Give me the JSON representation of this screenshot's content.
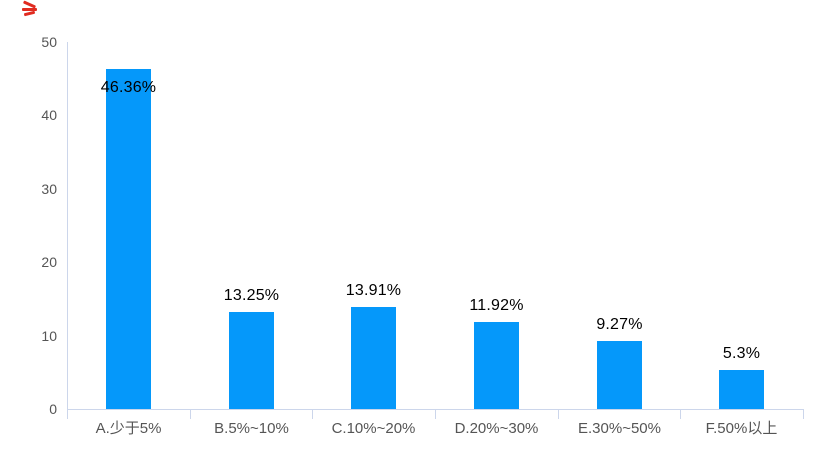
{
  "chart_data": {
    "type": "bar",
    "title": "",
    "xlabel": "",
    "ylabel": "",
    "categories": [
      "A.少于5%",
      "B.5%~10%",
      "C.10%~20%",
      "D.20%~30%",
      "E.30%~50%",
      "F.50%以上"
    ],
    "values": [
      46.36,
      13.25,
      13.91,
      11.92,
      9.27,
      5.3
    ],
    "value_labels": [
      "46.36%",
      "13.25%",
      "13.91%",
      "11.92%",
      "9.27%",
      "5.3%"
    ],
    "y_ticks": [
      0,
      10,
      20,
      30,
      40,
      50
    ],
    "ylim": [
      0,
      50
    ],
    "grid": false,
    "legend": "none",
    "value_label_inside": [
      true,
      false,
      false,
      false,
      false,
      false
    ],
    "colors": {
      "bar": "#0598fa",
      "axis": "#ccd6eb",
      "value_label": "#000000",
      "axis_label": "#555555",
      "red_mark": "#e02b20"
    }
  },
  "decorations": {
    "top_left_red_mark": true
  }
}
